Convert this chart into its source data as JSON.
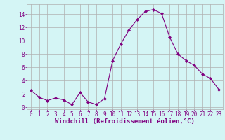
{
  "x": [
    0,
    1,
    2,
    3,
    4,
    5,
    6,
    7,
    8,
    9,
    10,
    11,
    12,
    13,
    14,
    15,
    16,
    17,
    18,
    19,
    20,
    21,
    22,
    23
  ],
  "y": [
    2.5,
    1.5,
    1.0,
    1.4,
    1.1,
    0.4,
    2.2,
    0.8,
    0.4,
    1.3,
    7.0,
    9.5,
    11.6,
    13.2,
    14.4,
    14.7,
    14.1,
    10.5,
    8.0,
    7.0,
    6.3,
    5.0,
    4.3,
    2.7
  ],
  "line_color": "#800080",
  "marker": "D",
  "marker_size": 2.0,
  "bg_color": "#d4f5f5",
  "grid_color": "#b0b0b0",
  "xlabel": "Windchill (Refroidissement éolien,°C)",
  "xlabel_color": "#800080",
  "xlabel_fontsize": 6.5,
  "tick_color": "#800080",
  "tick_fontsize": 5.5,
  "ylim": [
    -0.3,
    15.5
  ],
  "xlim": [
    -0.5,
    23.5
  ],
  "yticks": [
    0,
    2,
    4,
    6,
    8,
    10,
    12,
    14
  ],
  "xticks": [
    0,
    1,
    2,
    3,
    4,
    5,
    6,
    7,
    8,
    9,
    10,
    11,
    12,
    13,
    14,
    15,
    16,
    17,
    18,
    19,
    20,
    21,
    22,
    23
  ]
}
